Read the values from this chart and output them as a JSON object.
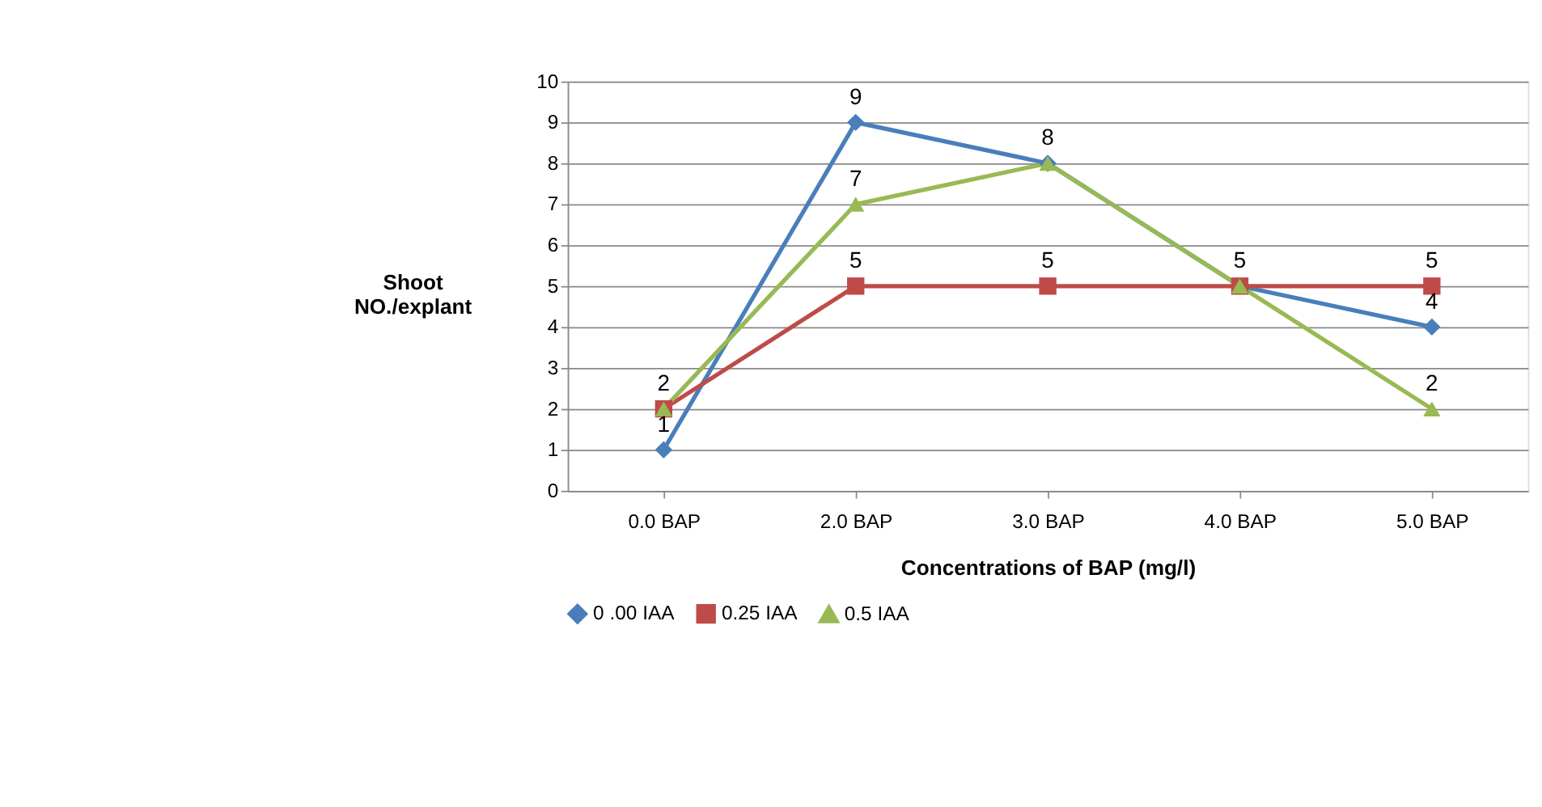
{
  "chart_data": {
    "type": "line",
    "xlabel": "Concentrations of BAP (mg/l)",
    "ylabel": "Shoot\nNO./explant",
    "categories": [
      "0.0 BAP",
      "2.0 BAP",
      "3.0 BAP",
      "4.0 BAP",
      "5.0 BAP"
    ],
    "series": [
      {
        "name": "0 .00 IAA",
        "color": "#4a7ebb",
        "marker": "diamond",
        "values": [
          1,
          9,
          8,
          5,
          4
        ],
        "value_labels": [
          "1",
          "9",
          "8",
          "5",
          "4"
        ]
      },
      {
        "name": "0.25 IAA",
        "color": "#be4b48",
        "marker": "square",
        "values": [
          2,
          5,
          5,
          5,
          5
        ],
        "value_labels": [
          "2",
          "5",
          "5",
          null,
          "5"
        ]
      },
      {
        "name": "0.5 IAA",
        "color": "#98b954",
        "marker": "triangle",
        "values": [
          2,
          7,
          8,
          5,
          2
        ],
        "value_labels": [
          null,
          "7",
          null,
          null,
          "2"
        ]
      }
    ],
    "ylim": [
      0,
      10
    ],
    "yticks": [
      0,
      1,
      2,
      3,
      4,
      5,
      6,
      7,
      8,
      9,
      10
    ],
    "grid": "y",
    "legend": "bottom"
  }
}
